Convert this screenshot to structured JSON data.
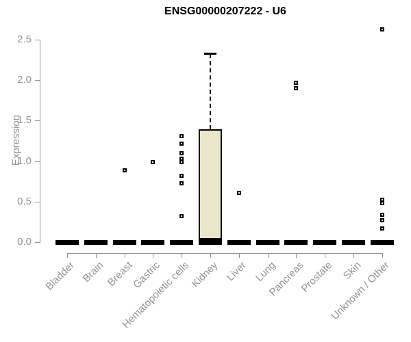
{
  "chart_data": {
    "type": "boxplot",
    "title": "ENSG00000207222 - U6",
    "ylabel": "Expression",
    "xlabel": "",
    "ylim": [
      0.0,
      2.5
    ],
    "y_ticks": [
      0.0,
      0.5,
      1.0,
      1.5,
      2.0,
      2.5
    ],
    "y_tick_labels": [
      "0.0",
      "0.5",
      "1.0",
      "1.5",
      "2.0",
      "2.5"
    ],
    "grid": false,
    "legend": "none",
    "categories": [
      "Bladder",
      "Brain",
      "Breast",
      "Gastric",
      "Hematopoietic cells",
      "Kidney",
      "Liver",
      "Lung",
      "Pancreas",
      "Prostate",
      "Skin",
      "Unknown / Other"
    ],
    "boxes": [
      {
        "category": "Bladder",
        "q1": 0,
        "median": 0,
        "q3": 0,
        "whisker_low": 0,
        "whisker_high": 0,
        "outliers": []
      },
      {
        "category": "Brain",
        "q1": 0,
        "median": 0,
        "q3": 0,
        "whisker_low": 0,
        "whisker_high": 0,
        "outliers": []
      },
      {
        "category": "Breast",
        "q1": 0,
        "median": 0,
        "q3": 0,
        "whisker_low": 0,
        "whisker_high": 0,
        "outliers": [
          0.89
        ]
      },
      {
        "category": "Gastric",
        "q1": 0,
        "median": 0,
        "q3": 0,
        "whisker_low": 0,
        "whisker_high": 0,
        "outliers": [
          0.99
        ]
      },
      {
        "category": "Hematopoietic cells",
        "q1": 0,
        "median": 0,
        "q3": 0,
        "whisker_low": 0,
        "whisker_high": 0,
        "outliers": [
          1.31,
          1.22,
          1.1,
          1.03,
          0.99,
          0.82,
          0.73,
          0.32
        ]
      },
      {
        "category": "Kidney",
        "q1": 0,
        "median": 0.02,
        "q3": 1.39,
        "whisker_low": 0,
        "whisker_high": 2.33,
        "outliers": []
      },
      {
        "category": "Liver",
        "q1": 0,
        "median": 0,
        "q3": 0,
        "whisker_low": 0,
        "whisker_high": 0,
        "outliers": [
          0.61
        ]
      },
      {
        "category": "Lung",
        "q1": 0,
        "median": 0,
        "q3": 0,
        "whisker_low": 0,
        "whisker_high": 0,
        "outliers": []
      },
      {
        "category": "Pancreas",
        "q1": 0,
        "median": 0,
        "q3": 0,
        "whisker_low": 0,
        "whisker_high": 0,
        "outliers": [
          1.97,
          1.9
        ]
      },
      {
        "category": "Prostate",
        "q1": 0,
        "median": 0,
        "q3": 0,
        "whisker_low": 0,
        "whisker_high": 0,
        "outliers": []
      },
      {
        "category": "Skin",
        "q1": 0,
        "median": 0,
        "q3": 0,
        "whisker_low": 0,
        "whisker_high": 0,
        "outliers": []
      },
      {
        "category": "Unknown / Other",
        "q1": 0,
        "median": 0,
        "q3": 0,
        "whisker_low": 0,
        "whisker_high": 0,
        "outliers": [
          2.63,
          0.52,
          0.48,
          0.34,
          0.27,
          0.17
        ]
      }
    ],
    "colors": {
      "box_fill": "#ebe6cb",
      "box_border": "#000000",
      "outlier": "#000000",
      "axis": "#8f9294",
      "tick_label": "#8f9294",
      "title": "#000000",
      "background": "#ffffff"
    }
  }
}
